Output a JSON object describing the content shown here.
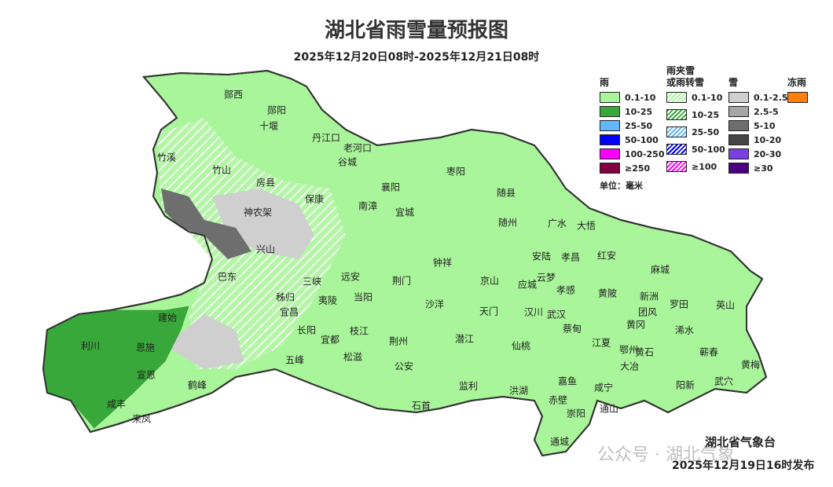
{
  "title": "湖北省雨雪量预报图",
  "subtitle": "2025年12月20日08时-2025年12月21日08时",
  "legend": {
    "unit": "单位：毫米",
    "groups": [
      {
        "title": "雨",
        "items": [
          {
            "label": "0.1-10",
            "color": "#a8f59a"
          },
          {
            "label": "10-25",
            "color": "#39a83a"
          },
          {
            "label": "25-50",
            "color": "#61b8ff"
          },
          {
            "label": "50-100",
            "color": "#0000ff"
          },
          {
            "label": "100-250",
            "color": "#fa00fa"
          },
          {
            "label": "≥250",
            "color": "#800040"
          }
        ]
      },
      {
        "title": "雨夹雪\n或雨转雪",
        "items": [
          {
            "label": "0.1-10",
            "color": "#a8f59a"
          },
          {
            "label": "10-25",
            "color": "#39a83a"
          },
          {
            "label": "25-50",
            "color": "#61b8ff"
          },
          {
            "label": "50-100",
            "color": "#0000ff"
          },
          {
            "label": "≥100",
            "color": "#fa00fa"
          }
        ]
      },
      {
        "title": "雪",
        "items": [
          {
            "label": "0.1-2.5",
            "color": "#cfcfcf"
          },
          {
            "label": "2.5-5",
            "color": "#a6a6a6"
          },
          {
            "label": "5-10",
            "color": "#6e6e6e"
          },
          {
            "label": "10-20",
            "color": "#454545"
          },
          {
            "label": "20-30",
            "color": "#7a3fe0"
          },
          {
            "label": "≥30",
            "color": "#4b0082"
          }
        ]
      },
      {
        "title": "冻雨",
        "items": [
          {
            "label": "",
            "color": "#ff7f0e"
          }
        ]
      }
    ]
  },
  "cities": [
    "郧西",
    "郧阳",
    "十堰",
    "丹江口",
    "老河口",
    "谷城",
    "竹溪",
    "竹山",
    "房县",
    "保康",
    "南漳",
    "襄阳",
    "枣阳",
    "宜城",
    "随县",
    "随州",
    "广水",
    "大悟",
    "神农架",
    "兴山",
    "巴东",
    "红安",
    "麻城",
    "安陆",
    "孝昌",
    "钟祥",
    "京山",
    "应城",
    "云梦",
    "孝感",
    "荆门",
    "远安",
    "三峡",
    "秭归",
    "夷陵",
    "当阳",
    "沙洋",
    "天门",
    "汉川",
    "武汉",
    "黄陂",
    "新洲",
    "团风",
    "罗田",
    "英山",
    "浠水",
    "黄冈",
    "鄂州",
    "黄石",
    "蕲春",
    "建始",
    "利川",
    "恩施",
    "宣恩",
    "长阳",
    "宜昌",
    "宜都",
    "枝江",
    "荆州",
    "潜江",
    "仙桃",
    "蔡甸",
    "江夏",
    "大冶",
    "阳新",
    "武穴",
    "黄梅",
    "五峰",
    "松滋",
    "公安",
    "监利",
    "洪湖",
    "嘉鱼",
    "咸宁",
    "赤壁",
    "崇阳",
    "通山",
    "通城",
    "石首",
    "鹤峰",
    "咸丰",
    "来凤"
  ],
  "issuer": "湖北省气象台",
  "issued": "2025年12月19日16时发布",
  "watermark": "公众号 · 湖北气象"
}
